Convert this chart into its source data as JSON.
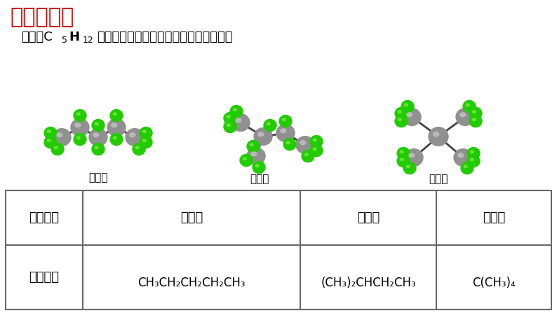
{
  "title": "思考与讨论",
  "title_color": "#CC0000",
  "bg_color": "#FFFFFF",
  "molecule_labels": [
    "正戊烷",
    "异戊烷",
    "新戊烷"
  ],
  "table_col0_header": "物质名称",
  "table_headers": [
    "正戊烷",
    "异戊烷",
    "新戊烷"
  ],
  "table_row1_label": "结构简式",
  "gray_color": "#888888",
  "green_color": "#22CC00",
  "table_border_color": "#666666",
  "subtitle_pre": "戊烷（C",
  "subtitle_sub1": "5",
  "subtitle_mid": "H",
  "subtitle_sub2": "12",
  "subtitle_post": "）的三种同分异构体的结构，如下所示："
}
